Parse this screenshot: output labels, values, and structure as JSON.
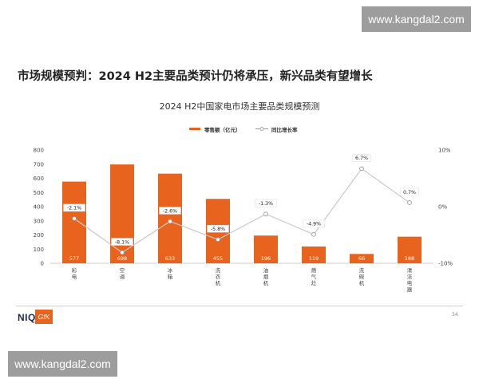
{
  "watermark": {
    "text": "www.kangdal2.com"
  },
  "headline": "市场规模预判：2024 H2主要品类预计仍将承压，新兴品类有望增长",
  "footer": {
    "brand_niq": "NIQ",
    "brand_gfk": "GfK",
    "page_number": "34"
  },
  "colors": {
    "bar": "#e8641e",
    "line": "#c8c8c8",
    "marker": "#ffffff",
    "marker_stroke": "#9a9a9a"
  },
  "chart_data": {
    "type": "bar",
    "title": "2024 H2中国家电市场主要品类规模预测",
    "categories": [
      "彩电",
      "空调",
      "冰箱",
      "洗衣机",
      "油烟机",
      "燃气灶",
      "洗碗机",
      "清洁电器"
    ],
    "series": [
      {
        "name": "零售额（亿元）",
        "type": "bar",
        "axis": "left",
        "values": [
          577,
          698,
          633,
          455,
          196,
          119,
          66,
          188
        ],
        "labels": [
          "577",
          "698",
          "633",
          "455",
          "196",
          "119",
          "66",
          "188"
        ]
      },
      {
        "name": "同比增长率",
        "type": "line",
        "axis": "right",
        "values": [
          -2.1,
          -8.1,
          -2.6,
          -5.8,
          -1.3,
          -4.9,
          6.7,
          0.7
        ],
        "labels": [
          "-2.1%",
          "-8.1%",
          "-2.6%",
          "-5.8%",
          "-1.3%",
          "-4.9%",
          "6.7%",
          "0.7%"
        ]
      }
    ],
    "y_left": {
      "min": 0,
      "max": 800,
      "ticks": [
        "0",
        "100",
        "200",
        "300",
        "400",
        "500",
        "600",
        "700",
        "800"
      ]
    },
    "y_right": {
      "min": -10,
      "max": 10,
      "ticks": [
        "-10%",
        "0%",
        "10%"
      ]
    },
    "legend_position": "top-center",
    "grid": false
  }
}
